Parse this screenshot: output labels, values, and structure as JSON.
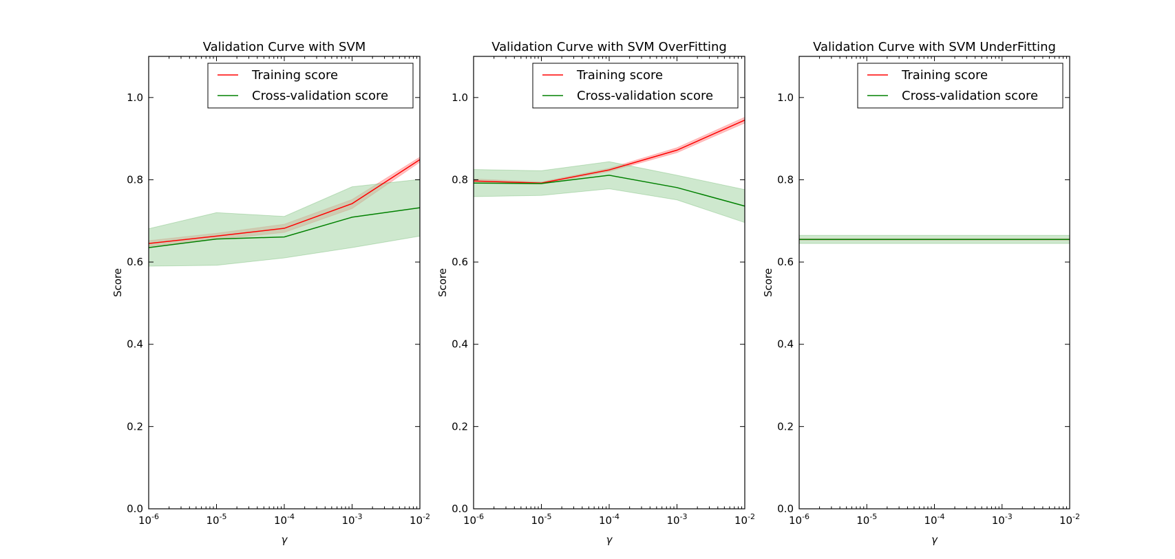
{
  "chart_data": [
    {
      "type": "line",
      "title": "Validation Curve with SVM",
      "xlabel": "γ",
      "ylabel": "Score",
      "xscale": "log",
      "xlim": [
        1e-06,
        0.01
      ],
      "ylim": [
        0.0,
        1.1
      ],
      "x": [
        1e-06,
        1e-05,
        0.0001,
        0.001,
        0.01
      ],
      "xtick_labels": [
        {
          "base": "10",
          "exp": "-6"
        },
        {
          "base": "10",
          "exp": "-5"
        },
        {
          "base": "10",
          "exp": "-4"
        },
        {
          "base": "10",
          "exp": "-3"
        },
        {
          "base": "10",
          "exp": "-2"
        }
      ],
      "yticks": [
        "0.0",
        "0.2",
        "0.4",
        "0.6",
        "0.8",
        "1.0"
      ],
      "grid": false,
      "legend_position": "upper right",
      "series": [
        {
          "name": "Training score",
          "color": "#ff0000",
          "fill": "#ff9090",
          "values": [
            0.645,
            0.663,
            0.682,
            0.742,
            0.849
          ],
          "lower": [
            0.638,
            0.655,
            0.672,
            0.73,
            0.843
          ],
          "upper": [
            0.652,
            0.67,
            0.692,
            0.752,
            0.855
          ]
        },
        {
          "name": "Cross-validation score",
          "color": "#008000",
          "fill": "#a6d6a6",
          "values": [
            0.635,
            0.656,
            0.661,
            0.709,
            0.732
          ],
          "lower": [
            0.59,
            0.592,
            0.61,
            0.635,
            0.663
          ],
          "upper": [
            0.681,
            0.72,
            0.711,
            0.783,
            0.801
          ]
        }
      ]
    },
    {
      "type": "line",
      "title": "Validation Curve with SVM OverFitting",
      "xlabel": "γ",
      "ylabel": "Score",
      "xscale": "log",
      "xlim": [
        1e-06,
        0.01
      ],
      "ylim": [
        0.0,
        1.1
      ],
      "x": [
        1e-06,
        1e-05,
        0.0001,
        0.001,
        0.01
      ],
      "xtick_labels": [
        {
          "base": "10",
          "exp": "-6"
        },
        {
          "base": "10",
          "exp": "-5"
        },
        {
          "base": "10",
          "exp": "-4"
        },
        {
          "base": "10",
          "exp": "-3"
        },
        {
          "base": "10",
          "exp": "-2"
        }
      ],
      "yticks": [
        "0.0",
        "0.2",
        "0.4",
        "0.6",
        "0.8",
        "1.0"
      ],
      "grid": false,
      "legend_position": "upper right",
      "series": [
        {
          "name": "Training score",
          "color": "#ff0000",
          "fill": "#ff9090",
          "values": [
            0.797,
            0.792,
            0.824,
            0.872,
            0.945
          ],
          "lower": [
            0.792,
            0.789,
            0.82,
            0.866,
            0.938
          ],
          "upper": [
            0.802,
            0.795,
            0.828,
            0.878,
            0.952
          ]
        },
        {
          "name": "Cross-validation score",
          "color": "#008000",
          "fill": "#a6d6a6",
          "values": [
            0.792,
            0.791,
            0.811,
            0.781,
            0.736
          ],
          "lower": [
            0.759,
            0.762,
            0.778,
            0.751,
            0.696
          ],
          "upper": [
            0.825,
            0.822,
            0.844,
            0.811,
            0.776
          ]
        }
      ]
    },
    {
      "type": "line",
      "title": "Validation Curve with SVM UnderFitting",
      "xlabel": "γ",
      "ylabel": "Score",
      "xscale": "log",
      "xlim": [
        1e-06,
        0.01
      ],
      "ylim": [
        0.0,
        1.1
      ],
      "x": [
        1e-06,
        1e-05,
        0.0001,
        0.001,
        0.01
      ],
      "xtick_labels": [
        {
          "base": "10",
          "exp": "-6"
        },
        {
          "base": "10",
          "exp": "-5"
        },
        {
          "base": "10",
          "exp": "-4"
        },
        {
          "base": "10",
          "exp": "-3"
        },
        {
          "base": "10",
          "exp": "-2"
        }
      ],
      "yticks": [
        "0.0",
        "0.2",
        "0.4",
        "0.6",
        "0.8",
        "1.0"
      ],
      "grid": false,
      "legend_position": "upper right",
      "series": [
        {
          "name": "Training score",
          "color": "#ff0000",
          "fill": "#ff9090",
          "values": [
            0.655,
            0.655,
            0.655,
            0.655,
            0.655
          ],
          "lower": [
            0.653,
            0.653,
            0.653,
            0.653,
            0.653
          ],
          "upper": [
            0.657,
            0.657,
            0.657,
            0.657,
            0.657
          ]
        },
        {
          "name": "Cross-validation score",
          "color": "#008000",
          "fill": "#a6d6a6",
          "values": [
            0.655,
            0.655,
            0.655,
            0.655,
            0.655
          ],
          "lower": [
            0.645,
            0.645,
            0.645,
            0.645,
            0.645
          ],
          "upper": [
            0.665,
            0.665,
            0.665,
            0.665,
            0.665
          ]
        }
      ]
    }
  ]
}
